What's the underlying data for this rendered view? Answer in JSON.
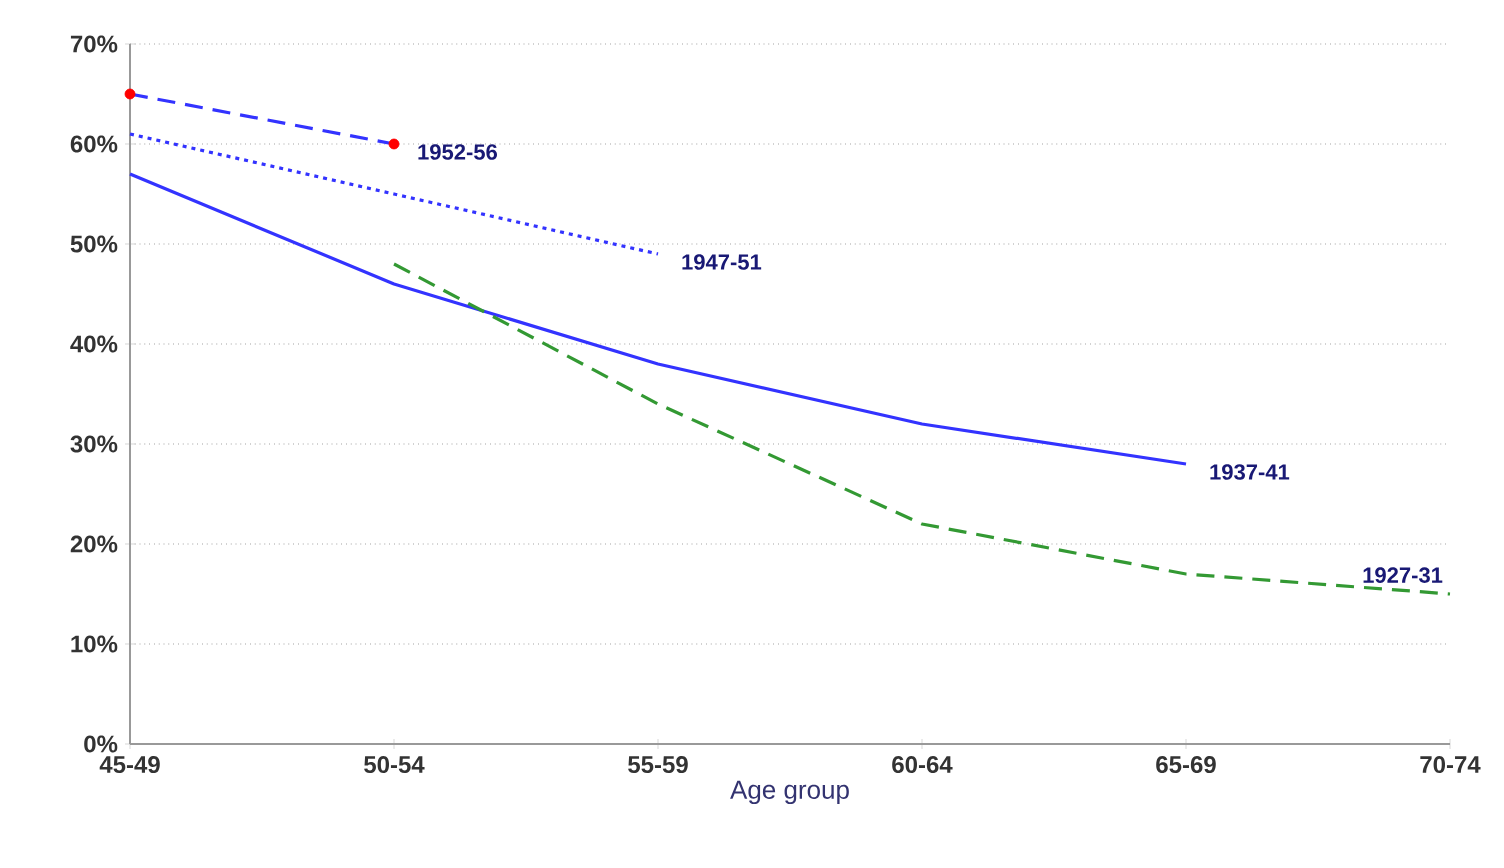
{
  "chart_data": {
    "type": "line",
    "xlabel": "Age group",
    "categories": [
      "45-49",
      "50-54",
      "55-59",
      "60-64",
      "65-69",
      "70-74"
    ],
    "ylim": [
      0,
      70
    ],
    "yticks": [
      {
        "value": 0,
        "label": "0%"
      },
      {
        "value": 10,
        "label": "10%"
      },
      {
        "value": 20,
        "label": "20%"
      },
      {
        "value": 30,
        "label": "30%"
      },
      {
        "value": 40,
        "label": "40%"
      },
      {
        "value": 50,
        "label": "50%"
      },
      {
        "value": 60,
        "label": "60%"
      },
      {
        "value": 70,
        "label": "70%"
      }
    ],
    "grid": "y",
    "series": [
      {
        "name": "1952-56",
        "color": "#3333ff",
        "line_style": "dashed",
        "marker": "circle",
        "colors": [
          "#ff0000",
          "#ff0000",
          null,
          null,
          null,
          null
        ],
        "values": [
          65,
          60,
          null,
          null,
          null,
          null
        ]
      },
      {
        "name": "1947-51",
        "color": "#3333ff",
        "line_style": "dotted",
        "values": [
          61,
          55,
          49,
          null,
          null,
          null
        ]
      },
      {
        "name": "1937-41",
        "color": "#3333ff",
        "line_style": "solid",
        "values": [
          57,
          46,
          38,
          32,
          28,
          null
        ]
      },
      {
        "name": "1927-31",
        "color": "#339933",
        "line_style": "dashed",
        "values": [
          null,
          48,
          34,
          22,
          17,
          15
        ]
      }
    ]
  }
}
